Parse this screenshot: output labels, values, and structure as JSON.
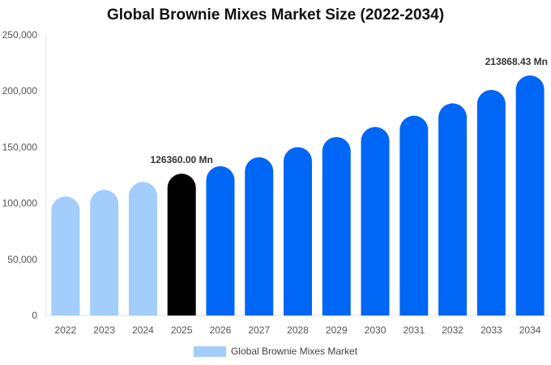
{
  "chart_data": {
    "type": "bar",
    "title": "Global Brownie Mixes Market Size (2022-2034)",
    "xlabel": "",
    "ylabel": "",
    "categories": [
      "2022",
      "2023",
      "2024",
      "2025",
      "2026",
      "2027",
      "2028",
      "2029",
      "2030",
      "2031",
      "2032",
      "2033",
      "2034"
    ],
    "series": [
      {
        "name": "Global Brownie Mixes Market",
        "values": [
          106000,
          112000,
          119000,
          126360,
          133000,
          141000,
          150000,
          159000,
          168000,
          178000,
          189000,
          201000,
          213868.43
        ]
      }
    ],
    "ylim": [
      0,
      250000
    ],
    "yticks": [
      0,
      50000,
      100000,
      150000,
      200000,
      250000
    ],
    "ytick_labels": [
      "0",
      "50,000",
      "100,000",
      "150,000",
      "200,000",
      "250,000"
    ],
    "data_labels": [
      {
        "category": "2025",
        "text": "126360.00 Mn"
      },
      {
        "category": "2034",
        "text": "213868.43 Mn"
      }
    ],
    "bar_colors": {
      "2022": "#a3cdfb",
      "2023": "#a3cdfb",
      "2024": "#a3cdfb",
      "2025": "#000000",
      "2026": "#0066f5",
      "2027": "#0066f5",
      "2028": "#0066f5",
      "2029": "#0066f5",
      "2030": "#0066f5",
      "2031": "#0066f5",
      "2032": "#0066f5",
      "2033": "#0066f5",
      "2034": "#0066f5"
    },
    "legend": {
      "position": "bottom",
      "swatch_color": "#a3cdfb"
    },
    "grid": false
  }
}
